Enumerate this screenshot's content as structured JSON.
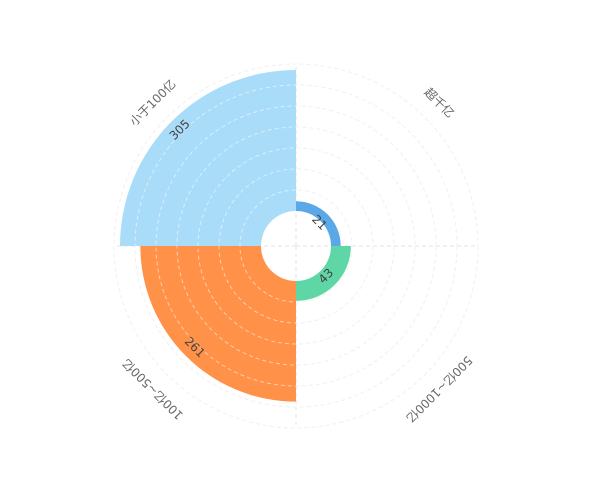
{
  "chart_data": {
    "type": "polar-bar",
    "categories": [
      "超千亿",
      "500亿~1000亿",
      "100亿~500亿",
      "小于100亿"
    ],
    "values": [
      21,
      43,
      261,
      305
    ],
    "colors": [
      "#5aa8e8",
      "#5fd6a6",
      "#ff9148",
      "#a8dcf8"
    ],
    "rlim": [
      0,
      318
    ]
  }
}
